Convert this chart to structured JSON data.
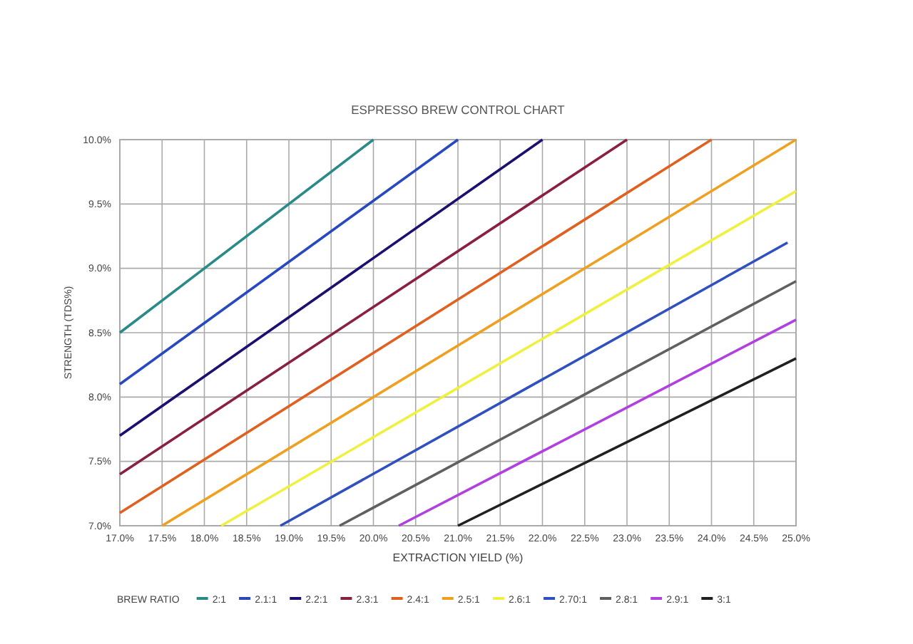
{
  "chart_data": {
    "type": "line",
    "title": "ESPRESSO BREW CONTROL CHART",
    "xlabel": "EXTRACTION YIELD (%)",
    "ylabel": "STRENGTH (TDS%)",
    "legend_title": "BREW RATIO",
    "legend": "bottom",
    "grid": true,
    "marker": "none",
    "line_style": "solid",
    "xlim": [
      17,
      25
    ],
    "ylim": [
      7,
      10
    ],
    "xticks": [
      {
        "value": 17,
        "label": "17.0%"
      },
      {
        "value": 17.5,
        "label": "17.5%"
      },
      {
        "value": 18,
        "label": "18.0%"
      },
      {
        "value": 18.5,
        "label": "18.5%"
      },
      {
        "value": 19,
        "label": "19.0%"
      },
      {
        "value": 19.5,
        "label": "19.5%"
      },
      {
        "value": 20,
        "label": "20.0%"
      },
      {
        "value": 20.5,
        "label": "20.5%"
      },
      {
        "value": 21,
        "label": "21.0%"
      },
      {
        "value": 21.5,
        "label": "21.5%"
      },
      {
        "value": 22,
        "label": "22.0%"
      },
      {
        "value": 22.5,
        "label": "22.5%"
      },
      {
        "value": 23,
        "label": "23.0%"
      },
      {
        "value": 23.5,
        "label": "23.5%"
      },
      {
        "value": 24,
        "label": "24.0%"
      },
      {
        "value": 24.5,
        "label": "24.5%"
      },
      {
        "value": 25,
        "label": "25.0%"
      }
    ],
    "yticks": [
      {
        "value": 7,
        "label": "7.0%"
      },
      {
        "value": 7.5,
        "label": "7.5%"
      },
      {
        "value": 8,
        "label": "8.0%"
      },
      {
        "value": 8.5,
        "label": "8.5%"
      },
      {
        "value": 9,
        "label": "9.0%"
      },
      {
        "value": 9.5,
        "label": "9.5%"
      },
      {
        "value": 10,
        "label": "10.0%"
      }
    ],
    "series": [
      {
        "name": "2:1",
        "color": "#2a8a88",
        "x": [
          17,
          20
        ],
        "values": [
          8.5,
          10
        ]
      },
      {
        "name": "2.1:1",
        "color": "#2848c0",
        "x": [
          17,
          21
        ],
        "values": [
          8.1,
          10
        ]
      },
      {
        "name": "2.2:1",
        "color": "#1a1070",
        "x": [
          17,
          22
        ],
        "values": [
          7.7,
          10
        ]
      },
      {
        "name": "2.3:1",
        "color": "#8a2040",
        "x": [
          17,
          23
        ],
        "values": [
          7.4,
          10
        ]
      },
      {
        "name": "2.4:1",
        "color": "#e06020",
        "x": [
          17,
          24
        ],
        "values": [
          7.1,
          10
        ]
      },
      {
        "name": "2.5:1",
        "color": "#f0a020",
        "x": [
          17.5,
          25
        ],
        "values": [
          7,
          10
        ]
      },
      {
        "name": "2.6:1",
        "color": "#f0f040",
        "x": [
          18.2,
          25
        ],
        "values": [
          7,
          9.6
        ]
      },
      {
        "name": "2.70:1",
        "color": "#3050c0",
        "x": [
          18.9,
          24.9
        ],
        "values": [
          7,
          9.2
        ]
      },
      {
        "name": "2.8:1",
        "color": "#606060",
        "x": [
          19.6,
          25
        ],
        "values": [
          7,
          8.9
        ]
      },
      {
        "name": "2.9:1",
        "color": "#b040e0",
        "x": [
          20.3,
          25
        ],
        "values": [
          7,
          8.6
        ]
      },
      {
        "name": "3:1",
        "color": "#202020",
        "x": [
          21,
          25
        ],
        "values": [
          7,
          8.3
        ]
      }
    ]
  }
}
